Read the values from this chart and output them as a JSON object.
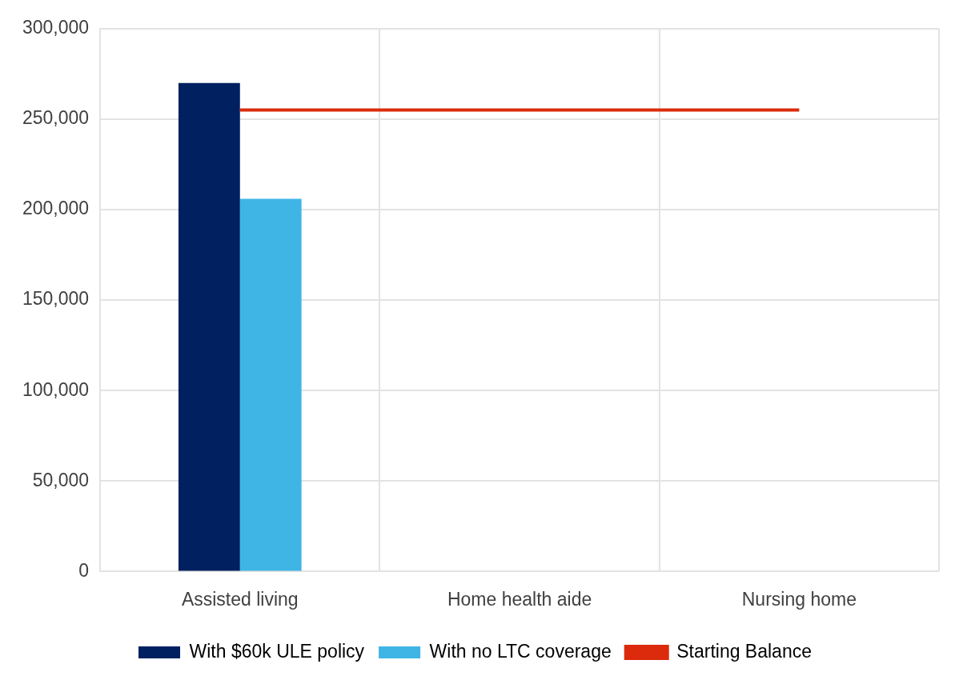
{
  "chart_data": {
    "type": "bar",
    "categories": [
      "Assisted living",
      "Home health aide",
      "Nursing home"
    ],
    "series": [
      {
        "name": "With $60k ULE policy",
        "color": "#002060",
        "values": [
          270000,
          null,
          null
        ]
      },
      {
        "name": "With no LTC coverage",
        "color": "#3fb5e5",
        "values": [
          206000,
          null,
          null
        ]
      },
      {
        "name": "Starting Balance",
        "type": "line",
        "color": "#dc2a0c",
        "values": [
          255000,
          255000,
          255000
        ],
        "marker": "none"
      }
    ],
    "ylim": [
      0,
      300000
    ],
    "yticks": [
      0,
      {
        "value": 50000,
        "label": "50,000"
      },
      {
        "value": 100000,
        "label": "100,000"
      },
      {
        "value": 150000,
        "label": "150,000"
      },
      {
        "value": 200000,
        "label": "200,000"
      },
      {
        "value": 250000,
        "label": "250,000"
      },
      {
        "value": 300000,
        "label": "300,000"
      }
    ],
    "grid": true,
    "legend": "bottom"
  }
}
